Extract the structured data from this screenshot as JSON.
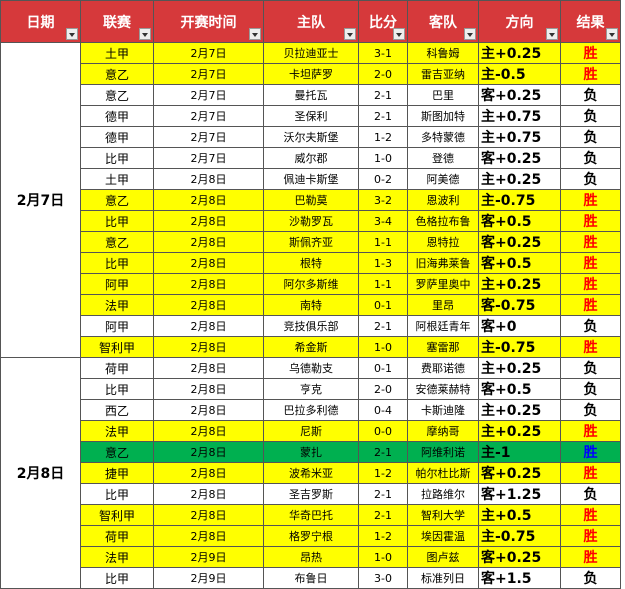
{
  "header": [
    "日期",
    "联赛",
    "开赛时间",
    "主队",
    "比分",
    "客队",
    "方向",
    "结果"
  ],
  "groups": [
    {
      "date": "2月7日",
      "rows": [
        {
          "fill": "#ffff00",
          "result_color": "#ff0000",
          "cells": [
            "土甲",
            "2月7日",
            "贝拉迪亚士",
            "3-1",
            "科鲁姆",
            "主+0.25",
            "胜"
          ]
        },
        {
          "fill": "#ffff00",
          "result_color": "#ff0000",
          "cells": [
            "意乙",
            "2月7日",
            "卡坦萨罗",
            "2-0",
            "雷吉亚纳",
            "主-0.5",
            "胜"
          ]
        },
        {
          "fill": "#ffffff",
          "result_color": "#000000",
          "cells": [
            "意乙",
            "2月7日",
            "曼托瓦",
            "2-1",
            "巴里",
            "客+0.25",
            "负"
          ]
        },
        {
          "fill": "#ffffff",
          "result_color": "#000000",
          "cells": [
            "德甲",
            "2月7日",
            "圣保利",
            "2-1",
            "斯图加特",
            "主+0.75",
            "负"
          ]
        },
        {
          "fill": "#ffffff",
          "result_color": "#000000",
          "cells": [
            "德甲",
            "2月7日",
            "沃尔夫斯堡",
            "1-2",
            "多特蒙德",
            "主+0.75",
            "负"
          ]
        },
        {
          "fill": "#ffffff",
          "result_color": "#000000",
          "cells": [
            "比甲",
            "2月7日",
            "威尔郡",
            "1-0",
            "登德",
            "客+0.25",
            "负"
          ]
        },
        {
          "fill": "#ffffff",
          "result_color": "#000000",
          "cells": [
            "土甲",
            "2月8日",
            "佩迪卡斯堡",
            "0-2",
            "阿美德",
            "主+0.25",
            "负"
          ]
        },
        {
          "fill": "#ffff00",
          "result_color": "#ff0000",
          "cells": [
            "意乙",
            "2月8日",
            "巴勒莫",
            "3-2",
            "恩波利",
            "主-0.75",
            "胜"
          ]
        },
        {
          "fill": "#ffff00",
          "result_color": "#ff0000",
          "cells": [
            "比甲",
            "2月8日",
            "沙勒罗瓦",
            "3-4",
            "色格拉布鲁",
            "客+0.5",
            "胜"
          ]
        },
        {
          "fill": "#ffff00",
          "result_color": "#ff0000",
          "cells": [
            "意乙",
            "2月8日",
            "斯佩齐亚",
            "1-1",
            "恩特拉",
            "客+0.25",
            "胜"
          ]
        },
        {
          "fill": "#ffff00",
          "result_color": "#ff0000",
          "cells": [
            "比甲",
            "2月8日",
            "根特",
            "1-3",
            "旧海弗莱鲁",
            "客+0.5",
            "胜"
          ]
        },
        {
          "fill": "#ffff00",
          "result_color": "#ff0000",
          "cells": [
            "阿甲",
            "2月8日",
            "阿尔多斯维",
            "1-1",
            "罗萨里奥中",
            "主+0.25",
            "胜"
          ]
        },
        {
          "fill": "#ffff00",
          "result_color": "#ff0000",
          "cells": [
            "法甲",
            "2月8日",
            "南特",
            "0-1",
            "里昂",
            "客-0.75",
            "胜"
          ]
        },
        {
          "fill": "#ffffff",
          "result_color": "#000000",
          "cells": [
            "阿甲",
            "2月8日",
            "竞技俱乐部",
            "2-1",
            "阿根廷青年",
            "客+0",
            "负"
          ]
        },
        {
          "fill": "#ffff00",
          "result_color": "#ff0000",
          "cells": [
            "智利甲",
            "2月8日",
            "希金斯",
            "1-0",
            "塞雷那",
            "主-0.75",
            "胜"
          ]
        }
      ]
    },
    {
      "date": "2月8日",
      "rows": [
        {
          "fill": "#ffffff",
          "result_color": "#000000",
          "cells": [
            "荷甲",
            "2月8日",
            "乌德勒支",
            "0-1",
            "费耶诺德",
            "主+0.25",
            "负"
          ]
        },
        {
          "fill": "#ffffff",
          "result_color": "#000000",
          "cells": [
            "比甲",
            "2月8日",
            "亨克",
            "2-0",
            "安德莱赫特",
            "客+0.5",
            "负"
          ]
        },
        {
          "fill": "#ffffff",
          "result_color": "#000000",
          "cells": [
            "西乙",
            "2月8日",
            "巴拉多利德",
            "0-4",
            "卡斯迪隆",
            "主+0.25",
            "负"
          ]
        },
        {
          "fill": "#ffff00",
          "result_color": "#ff0000",
          "cells": [
            "法甲",
            "2月8日",
            "尼斯",
            "0-0",
            "摩纳哥",
            "主+0.25",
            "胜"
          ]
        },
        {
          "fill": "#00b050",
          "result_color": "#0000ff",
          "cells": [
            "意乙",
            "2月8日",
            "蒙扎",
            "2-1",
            "阿维利诺",
            "主-1",
            "胜"
          ]
        },
        {
          "fill": "#ffff00",
          "result_color": "#ff0000",
          "cells": [
            "捷甲",
            "2月8日",
            "波希米亚",
            "1-2",
            "帕尔杜比斯",
            "客+0.25",
            "胜"
          ]
        },
        {
          "fill": "#ffffff",
          "result_color": "#000000",
          "cells": [
            "比甲",
            "2月8日",
            "圣吉罗斯",
            "2-1",
            "拉路维尔",
            "客+1.25",
            "负"
          ]
        },
        {
          "fill": "#ffff00",
          "result_color": "#ff0000",
          "cells": [
            "智利甲",
            "2月8日",
            "华奇巴托",
            "2-1",
            "智利大学",
            "主+0.5",
            "胜"
          ]
        },
        {
          "fill": "#ffff00",
          "result_color": "#ff0000",
          "cells": [
            "荷甲",
            "2月8日",
            "格罗宁根",
            "1-2",
            "埃因霍温",
            "主-0.75",
            "胜"
          ]
        },
        {
          "fill": "#ffff00",
          "result_color": "#ff0000",
          "cells": [
            "法甲",
            "2月9日",
            "昂热",
            "1-0",
            "图卢兹",
            "客+0.25",
            "胜"
          ]
        },
        {
          "fill": "#ffffff",
          "result_color": "#000000",
          "cells": [
            "比甲",
            "2月9日",
            "布鲁日",
            "3-0",
            "标准列日",
            "客+1.5",
            "负"
          ]
        }
      ]
    }
  ]
}
